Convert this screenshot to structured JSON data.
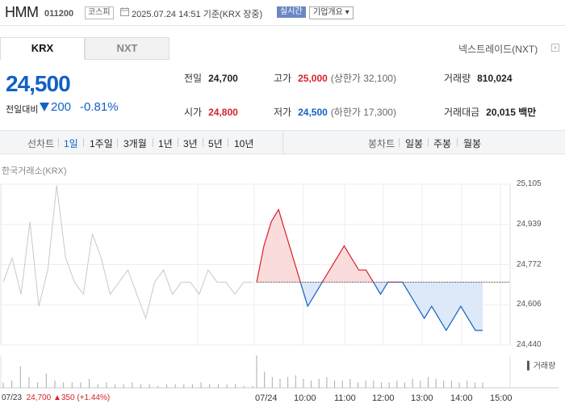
{
  "header": {
    "name": "HMM",
    "code": "011200",
    "market": "코스피",
    "datetime": "2025.07.24 14:51 기준(KRX 장중)",
    "realtime": "실시간",
    "company": "기업개요 ▾"
  },
  "tabs": [
    "KRX",
    "NXT"
  ],
  "nxt_link": "넥스트레이드(NXT)",
  "price": {
    "current": "24,500",
    "change_label": "전일대비",
    "change": "200",
    "change_pct": "-0.81%"
  },
  "stats": {
    "prev_label": "전일",
    "prev": "24,700",
    "high_label": "고가",
    "high": "25,000",
    "upper": "(상한가 32,100)",
    "volume_label": "거래량",
    "volume": "810,024",
    "open_label": "시가",
    "open": "24,800",
    "low_label": "저가",
    "low": "24,500",
    "lower": "(하한가 17,300)",
    "amount_label": "거래대금",
    "amount": "20,015 백만"
  },
  "period_bar": {
    "chart_label": "선차트",
    "line_options": [
      "1일",
      "1주일",
      "3개월",
      "1년",
      "3년",
      "5년",
      "10년"
    ],
    "selected": "1일",
    "candle_label": "봉차트",
    "candle_options": [
      "일봉",
      "주봉",
      "월봉"
    ]
  },
  "exchange_label": "한국거래소(KRX)",
  "volume_legend": "거래량",
  "prev_day": {
    "date": "07/23",
    "price": "24,700",
    "change": "▲350",
    "pct": "(+1.44%)"
  },
  "colors": {
    "up": "#d9202b",
    "down": "#1261c4",
    "prev": "#c8c8c8"
  },
  "chart_data": {
    "type": "line",
    "title": "",
    "ylim": [
      24440,
      25105
    ],
    "y_ticks": [
      "25,105",
      "24,939",
      "24,772",
      "24,606",
      "24,440"
    ],
    "x_ticks": [
      "07/23",
      "07/24",
      "10:00",
      "11:00",
      "12:00",
      "13:00",
      "14:00",
      "15:00"
    ],
    "baseline": 24700,
    "series": [
      {
        "name": "07/23",
        "color": "#c8c8c8",
        "values": [
          24700,
          24800,
          24650,
          24950,
          24600,
          24750,
          25100,
          24800,
          24700,
          24650,
          24900,
          24800,
          24650,
          24700,
          24750,
          24650,
          24550,
          24700,
          24750,
          24650,
          24700,
          24700,
          24650,
          24750,
          24700,
          24700,
          24650,
          24700,
          24700
        ]
      },
      {
        "name": "07/24",
        "color": "#d9202b",
        "values": [
          24700,
          24850,
          24950,
          25000,
          24900,
          24800,
          24700,
          24600,
          24650,
          24700,
          24750,
          24800,
          24850,
          24800,
          24750,
          24750,
          24700,
          24650,
          24700,
          24700,
          24700,
          24650,
          24600,
          24550,
          24600,
          24550,
          24500,
          24550,
          24600,
          24550,
          24500,
          24500
        ]
      }
    ],
    "volume": [
      3,
      4,
      12,
      6,
      3,
      8,
      4,
      3,
      3,
      3,
      5,
      2,
      3,
      2,
      2,
      3,
      2,
      2,
      1,
      2,
      2,
      2,
      2,
      3,
      2,
      2,
      2,
      2,
      1,
      1,
      18,
      9,
      6,
      5,
      6,
      7,
      5,
      4,
      5,
      6,
      4,
      4,
      5,
      3,
      4,
      4,
      3,
      3,
      4,
      3,
      5,
      4,
      6,
      5,
      4,
      4,
      3,
      4,
      3,
      3
    ]
  }
}
